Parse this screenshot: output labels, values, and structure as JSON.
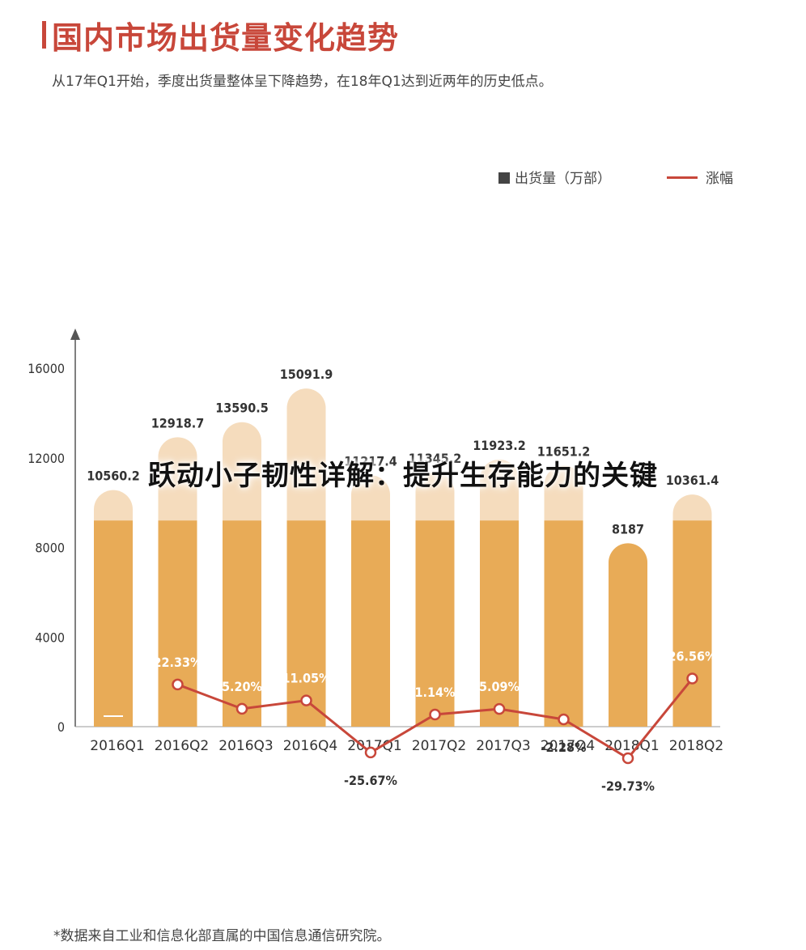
{
  "header": {
    "title": "国内市场出货量变化趋势",
    "subtitle": "从17年Q1开始，季度出货量整体呈下降趋势，在18年Q1达到近两年的历史低点。"
  },
  "overlay_text": "跃动小子韧性详解：提升生存能力的关键",
  "footnote": "*数据来自工业和信息化部直属的中国信息通信研究院。",
  "colors": {
    "accent": "#c8473a",
    "bar": "#e8ab57",
    "bar_light": "#f5dcbd",
    "axis": "#555555"
  },
  "chart_data": {
    "type": "bar",
    "categories": [
      "2016Q1",
      "2016Q2",
      "2016Q3",
      "2016Q4",
      "2017Q1",
      "2017Q2",
      "2017Q3",
      "2017Q4",
      "2018Q1",
      "2018Q2"
    ],
    "series": [
      {
        "name": "出货量（万部）",
        "type": "bar",
        "values": [
          10560.2,
          12918.7,
          13590.5,
          15091.9,
          11217.4,
          11345.2,
          11923.2,
          11651.2,
          8187,
          10361.4
        ],
        "labels": [
          "10560.2",
          "12918.7",
          "13590.5",
          "15091.9",
          "11217.4",
          "11345.2",
          "11923.2",
          "11651.2",
          "8187",
          "10361.4"
        ]
      },
      {
        "name": "涨幅",
        "type": "line",
        "values": [
          null,
          22.33,
          5.2,
          11.05,
          -25.67,
          1.14,
          5.09,
          -2.28,
          -29.73,
          26.56
        ],
        "labels": [
          "",
          "22.33%",
          "5.20%",
          "11.05%",
          "-25.67%",
          "1.14%",
          "5.09%",
          "-2.28%",
          "-29.73%",
          "26.56%"
        ]
      }
    ],
    "yticks": [
      "0",
      "4000",
      "8000",
      "12000",
      "16000"
    ],
    "ylim": [
      0,
      16000
    ],
    "legend_position": "top-right"
  }
}
